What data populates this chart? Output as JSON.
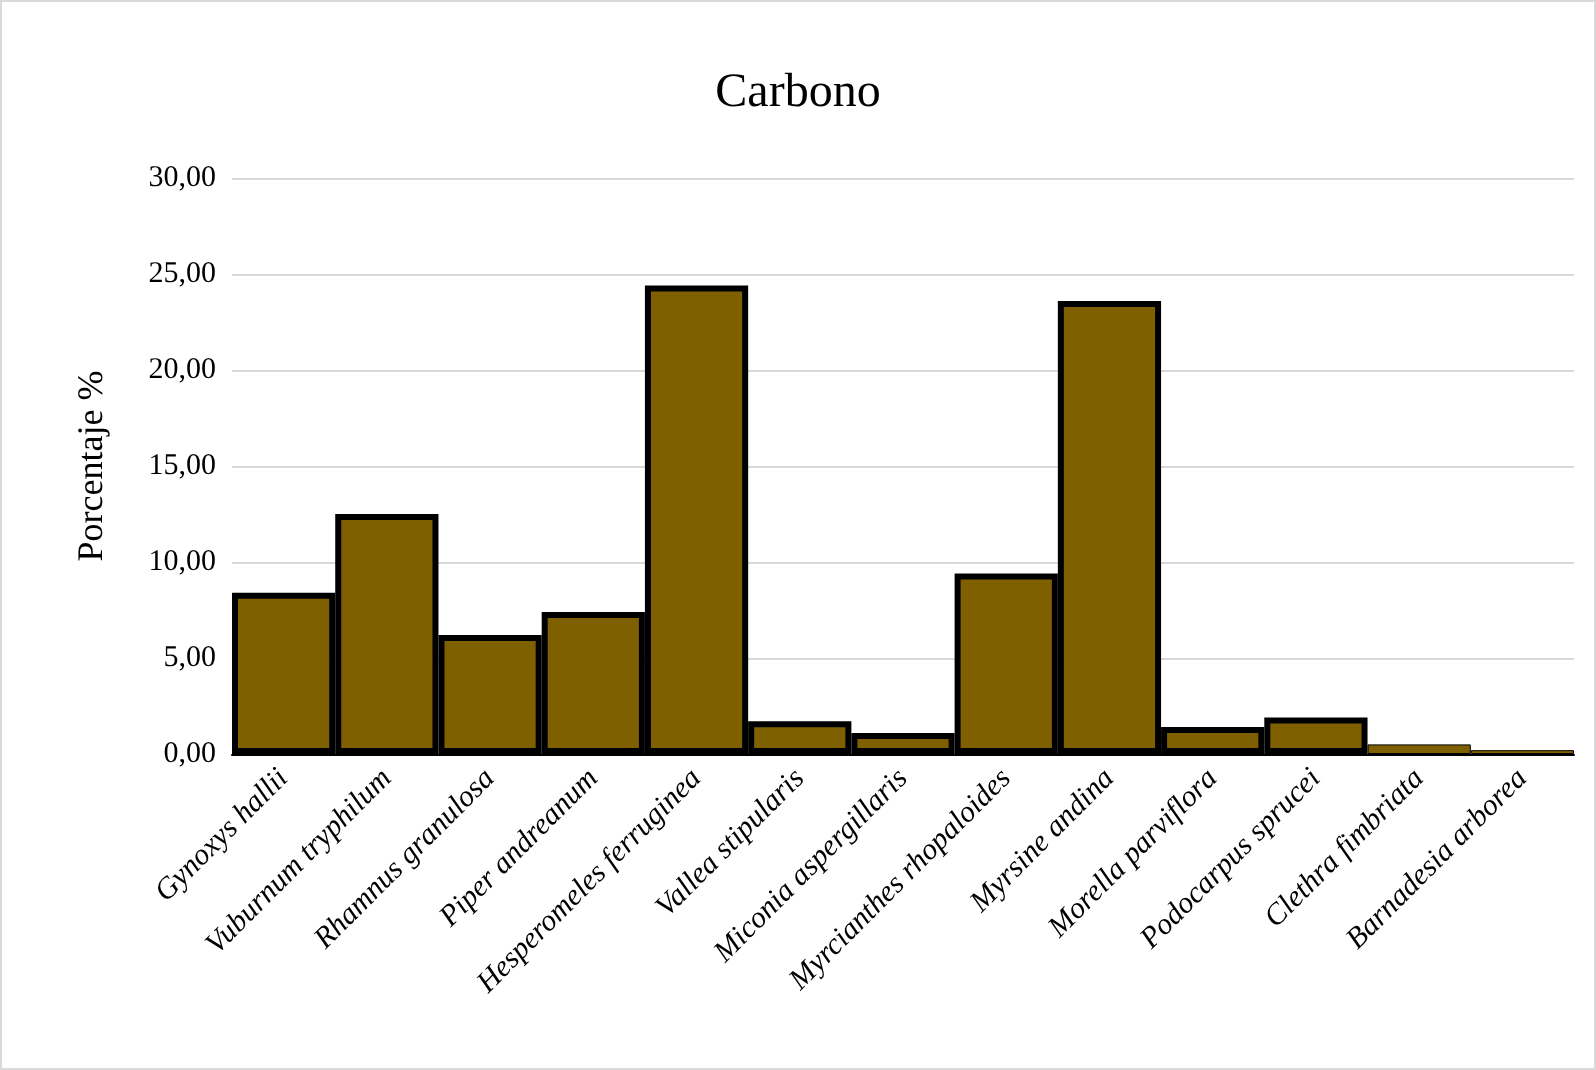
{
  "chart_data": {
    "type": "bar",
    "title": "Carbono",
    "ylabel": "Porcentaje %",
    "categories": [
      "Gynoxys hallii",
      "Vuburnum tryphilum",
      "Rhamnus granulosa",
      "Piper andreanum",
      "Hesperomeles ferruginea",
      "Vallea stipularis",
      "Miconia aspergillaris",
      "Myrcianthes rhopaloides",
      "Myrsine andina",
      "Morella parviflora",
      "Podocarpus sprucei",
      "Clethra fimbriata",
      "Barnadesia arborea"
    ],
    "values": [
      8.4,
      12.5,
      6.2,
      7.4,
      24.4,
      1.7,
      1.1,
      9.4,
      23.6,
      1.4,
      1.9,
      0.5,
      0.2
    ],
    "color": "#7f6000",
    "ylim": [
      0,
      30
    ],
    "yticks": [
      {
        "value": 0,
        "label": "0,00"
      },
      {
        "value": 5,
        "label": "5,00"
      },
      {
        "value": 10,
        "label": "10,00"
      },
      {
        "value": 15,
        "label": "15,00"
      },
      {
        "value": 20,
        "label": "20,00"
      },
      {
        "value": 25,
        "label": "25,00"
      },
      {
        "value": 30,
        "label": "30,00"
      }
    ],
    "grid": "y"
  }
}
